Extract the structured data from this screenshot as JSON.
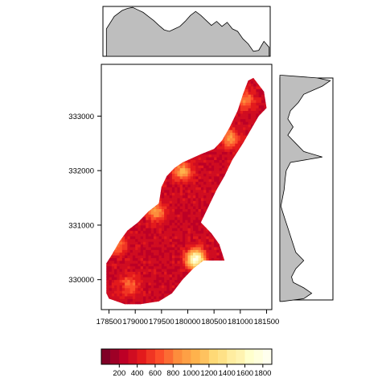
{
  "chart_data": {
    "type": "heatmap",
    "title": "",
    "xlabel": "",
    "ylabel": "",
    "xlim": [
      178400,
      181600
    ],
    "ylim": [
      329450,
      333950
    ],
    "x_ticks": [
      178500,
      179000,
      179500,
      180000,
      180500,
      181000,
      181500
    ],
    "x_tick_labels": [
      "178500",
      "179000",
      "179500",
      "180000",
      "180500",
      "181000",
      "181500"
    ],
    "y_ticks": [
      330000,
      331000,
      332000,
      333000
    ],
    "y_tick_labels": [
      "330000",
      "331000",
      "332000",
      "333000"
    ],
    "grid": false,
    "legend_position": "bottom",
    "colorbar": {
      "breaks": [
        0,
        100,
        200,
        300,
        400,
        500,
        600,
        700,
        800,
        900,
        1000,
        1100,
        1200,
        1300,
        1400,
        1500,
        1600,
        1700,
        1800,
        1900
      ],
      "tick_values": [
        200,
        400,
        600,
        800,
        1000,
        1200,
        1400,
        1600,
        1800
      ],
      "tick_labels": [
        "200",
        "400",
        "600",
        "800",
        "1000",
        "1200",
        "1400",
        "1600",
        "1800"
      ],
      "colors": [
        "#800026",
        "#9e0026",
        "#bd0026",
        "#d00d21",
        "#e31a1c",
        "#f03523",
        "#fc4e2a",
        "#fc6c33",
        "#fd8d3c",
        "#fea045",
        "#feb24c",
        "#fec25f",
        "#fed976",
        "#fee187",
        "#ffeda0",
        "#fff3b0",
        "#ffffcc",
        "#ffffdd",
        "#ffffee"
      ]
    },
    "region_outline": [
      [
        178450,
        329750
      ],
      [
        178450,
        330300
      ],
      [
        178550,
        330450
      ],
      [
        178700,
        330700
      ],
      [
        178850,
        330900
      ],
      [
        179050,
        331050
      ],
      [
        179250,
        331250
      ],
      [
        179450,
        331400
      ],
      [
        179500,
        331700
      ],
      [
        179600,
        331900
      ],
      [
        179750,
        332050
      ],
      [
        179900,
        332150
      ],
      [
        180250,
        332300
      ],
      [
        180500,
        332400
      ],
      [
        180650,
        332550
      ],
      [
        180800,
        332800
      ],
      [
        180950,
        333100
      ],
      [
        181050,
        333400
      ],
      [
        181150,
        333650
      ],
      [
        181250,
        333700
      ],
      [
        181450,
        333450
      ],
      [
        181500,
        333150
      ],
      [
        181350,
        333000
      ],
      [
        181200,
        332750
      ],
      [
        181050,
        332500
      ],
      [
        180850,
        332200
      ],
      [
        180700,
        331900
      ],
      [
        180550,
        331650
      ],
      [
        180400,
        331350
      ],
      [
        180250,
        331050
      ],
      [
        180450,
        330850
      ],
      [
        180600,
        330650
      ],
      [
        180700,
        330350
      ],
      [
        180300,
        330350
      ],
      [
        180100,
        330200
      ],
      [
        179900,
        330000
      ],
      [
        179700,
        329750
      ],
      [
        179450,
        329600
      ],
      [
        179100,
        329550
      ],
      [
        178800,
        329550
      ],
      [
        178500,
        329650
      ]
    ],
    "hotspots": [
      {
        "x": 180150,
        "y": 330380,
        "value": 1800
      },
      {
        "x": 179900,
        "y": 332000,
        "value": 1000
      },
      {
        "x": 178650,
        "y": 330650,
        "value": 800
      },
      {
        "x": 180800,
        "y": 332600,
        "value": 900
      },
      {
        "x": 179400,
        "y": 331250,
        "value": 900
      },
      {
        "x": 178900,
        "y": 329900,
        "value": 750
      },
      {
        "x": 181100,
        "y": 333300,
        "value": 800
      }
    ],
    "background_value": 320,
    "top_density": [
      {
        "x": 178450,
        "y": 0.55
      },
      {
        "x": 178600,
        "y": 0.8
      },
      {
        "x": 178750,
        "y": 0.92
      },
      {
        "x": 178850,
        "y": 0.96
      },
      {
        "x": 178950,
        "y": 0.98
      },
      {
        "x": 179050,
        "y": 0.93
      },
      {
        "x": 179150,
        "y": 0.88
      },
      {
        "x": 179250,
        "y": 0.8
      },
      {
        "x": 179350,
        "y": 0.72
      },
      {
        "x": 179450,
        "y": 0.62
      },
      {
        "x": 179550,
        "y": 0.53
      },
      {
        "x": 179650,
        "y": 0.5
      },
      {
        "x": 179750,
        "y": 0.55
      },
      {
        "x": 179850,
        "y": 0.6
      },
      {
        "x": 179950,
        "y": 0.7
      },
      {
        "x": 180050,
        "y": 0.82
      },
      {
        "x": 180150,
        "y": 0.9
      },
      {
        "x": 180250,
        "y": 0.82
      },
      {
        "x": 180350,
        "y": 0.72
      },
      {
        "x": 180450,
        "y": 0.62
      },
      {
        "x": 180550,
        "y": 0.7
      },
      {
        "x": 180650,
        "y": 0.6
      },
      {
        "x": 180750,
        "y": 0.68
      },
      {
        "x": 180850,
        "y": 0.55
      },
      {
        "x": 180950,
        "y": 0.5
      },
      {
        "x": 181050,
        "y": 0.35
      },
      {
        "x": 181150,
        "y": 0.25
      },
      {
        "x": 181250,
        "y": 0.1
      },
      {
        "x": 181350,
        "y": 0.12
      },
      {
        "x": 181450,
        "y": 0.3
      },
      {
        "x": 181550,
        "y": 0.18
      }
    ],
    "right_density": [
      {
        "y": 329600,
        "x": 0.05
      },
      {
        "y": 329650,
        "x": 0.45
      },
      {
        "y": 329750,
        "x": 0.6
      },
      {
        "y": 329850,
        "x": 0.45
      },
      {
        "y": 329950,
        "x": 0.25
      },
      {
        "y": 330050,
        "x": 0.22
      },
      {
        "y": 330200,
        "x": 0.3
      },
      {
        "y": 330350,
        "x": 0.45
      },
      {
        "y": 330500,
        "x": 0.3
      },
      {
        "y": 330650,
        "x": 0.25
      },
      {
        "y": 330800,
        "x": 0.2
      },
      {
        "y": 330950,
        "x": 0.15
      },
      {
        "y": 331100,
        "x": 0.1
      },
      {
        "y": 331250,
        "x": 0.05
      },
      {
        "y": 331350,
        "x": 0.02
      },
      {
        "y": 331500,
        "x": 0.05
      },
      {
        "y": 331650,
        "x": 0.08
      },
      {
        "y": 331850,
        "x": 0.1
      },
      {
        "y": 332000,
        "x": 0.12
      },
      {
        "y": 332150,
        "x": 0.2
      },
      {
        "y": 332250,
        "x": 0.8
      },
      {
        "y": 332350,
        "x": 0.45
      },
      {
        "y": 332500,
        "x": 0.3
      },
      {
        "y": 332650,
        "x": 0.15
      },
      {
        "y": 332800,
        "x": 0.25
      },
      {
        "y": 332950,
        "x": 0.15
      },
      {
        "y": 333100,
        "x": 0.2
      },
      {
        "y": 333250,
        "x": 0.35
      },
      {
        "y": 333400,
        "x": 0.45
      },
      {
        "y": 333550,
        "x": 0.8
      },
      {
        "y": 333650,
        "x": 0.95
      },
      {
        "y": 333700,
        "x": 0.7
      },
      {
        "y": 333750,
        "x": 0.05
      }
    ]
  }
}
